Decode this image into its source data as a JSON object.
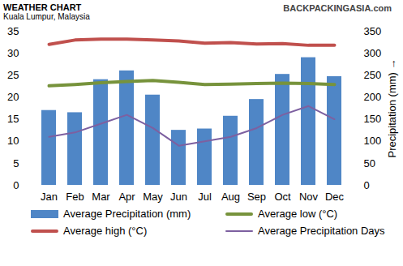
{
  "chart_data": {
    "type": "bar",
    "title": "WEATHER CHART",
    "subtitle": "Kuala Lumpur, Malaysia",
    "annotations": [
      "BACKPACKINGASIA.com"
    ],
    "categories": [
      "Jan",
      "Feb",
      "Mar",
      "Apr",
      "May",
      "Jun",
      "Jul",
      "Aug",
      "Sep",
      "Oct",
      "Nov",
      "Dec"
    ],
    "series": [
      {
        "name": "Average Precipitation (mm)",
        "type": "bar",
        "axis": "y2",
        "color": "#4f86c6",
        "values": [
          170,
          165,
          240,
          260,
          205,
          125,
          128,
          157,
          195,
          252,
          290,
          247
        ]
      },
      {
        "name": "Average low (°C)",
        "type": "line",
        "color": "#77933c",
        "values": [
          22.6,
          22.9,
          23.3,
          23.6,
          23.8,
          23.4,
          22.9,
          23.0,
          23.1,
          23.2,
          23.1,
          22.9
        ]
      },
      {
        "name": "Average high (°C)",
        "type": "line",
        "color": "#c0504d",
        "values": [
          32.0,
          33.0,
          33.2,
          33.2,
          33.0,
          32.8,
          32.3,
          32.4,
          32.1,
          32.2,
          31.8,
          31.8
        ]
      },
      {
        "name": "Average Precipitation Days",
        "type": "line",
        "color": "#7d60a0",
        "values": [
          11,
          12,
          14,
          16,
          13,
          9,
          10,
          11,
          13,
          16,
          18,
          15
        ]
      }
    ],
    "ylim": [
      0,
      35
    ],
    "yticks": [
      0,
      5,
      10,
      15,
      20,
      25,
      30,
      35
    ],
    "y2lim": [
      0,
      350
    ],
    "y2ticks": [
      0,
      50,
      100,
      150,
      200,
      250,
      300,
      350
    ],
    "y2label": "Precipitation (mm)",
    "grid": false,
    "legend": "bottom"
  }
}
